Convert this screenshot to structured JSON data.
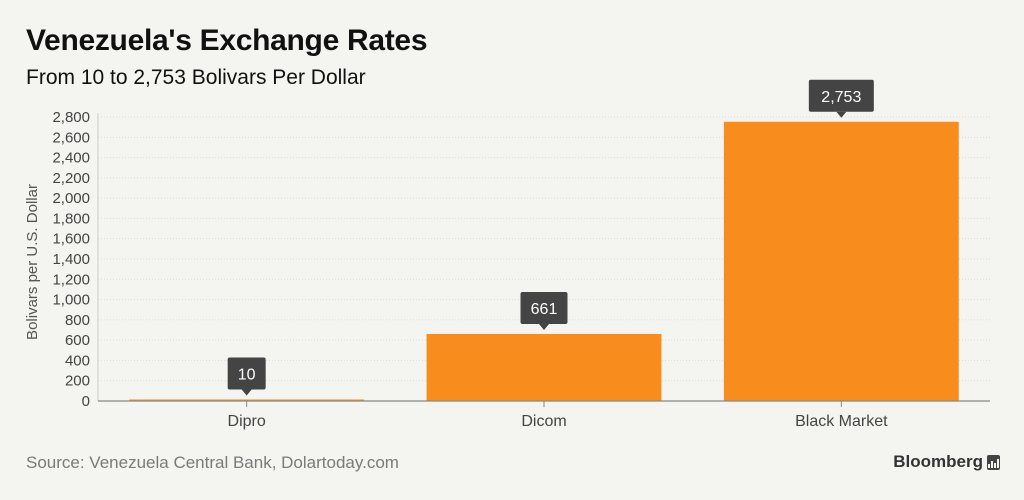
{
  "header": {
    "title": "Venezuela's Exchange Rates",
    "subtitle": "From 10 to 2,753 Bolivars Per Dollar"
  },
  "footer": {
    "source": "Source: Venezuela Central Bank, Dolartoday.com",
    "brand": "Bloomberg"
  },
  "colors": {
    "bar": "#f88d1e",
    "label_bg": "#444444",
    "grid": "#dadad6",
    "axis_text": "#444444"
  },
  "chart_data": {
    "type": "bar",
    "title": "Venezuela's Exchange Rates",
    "subtitle": "From 10 to 2,753 Bolivars Per Dollar",
    "xlabel": "",
    "ylabel": "Bolivars per U.S. Dollar",
    "categories": [
      "Dipro",
      "Dicom",
      "Black Market"
    ],
    "values": [
      10,
      661,
      2753
    ],
    "data_labels": [
      "10",
      "661",
      "2,753"
    ],
    "ylim": [
      0,
      2800
    ],
    "yticks": [
      0,
      200,
      400,
      600,
      800,
      1000,
      1200,
      1400,
      1600,
      1800,
      2000,
      2200,
      2400,
      2600,
      2800
    ],
    "ytick_labels": [
      "0",
      "200",
      "400",
      "600",
      "800",
      "1,000",
      "1,200",
      "1,400",
      "1,600",
      "1,800",
      "2,000",
      "2,200",
      "2,400",
      "2,600",
      "2,800"
    ],
    "grid": true,
    "legend": "none"
  }
}
